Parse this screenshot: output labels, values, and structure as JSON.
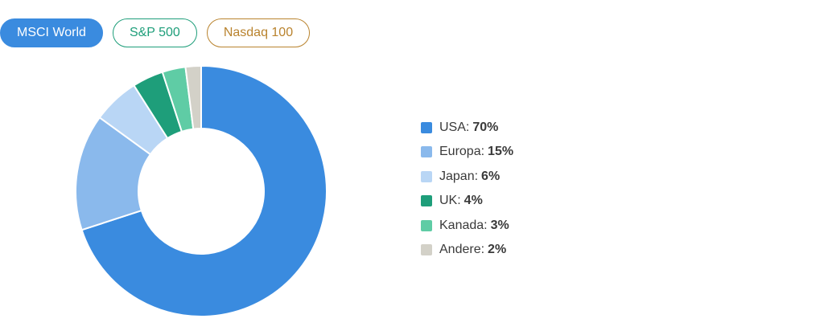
{
  "tabs": [
    {
      "label": "MSCI World",
      "active": true,
      "color": "#3a8bdf"
    },
    {
      "label": "S&P 500",
      "active": false,
      "color": "#1e9e7a"
    },
    {
      "label": "Nasdaq 100",
      "active": false,
      "color": "#b9832e"
    }
  ],
  "chart_data": {
    "type": "pie",
    "title": "",
    "donut": true,
    "legend_position": "right",
    "categories": [
      "USA",
      "Europa",
      "Japan",
      "UK",
      "Kanada",
      "Andere"
    ],
    "values": [
      70,
      15,
      6,
      4,
      3,
      2
    ],
    "value_suffix": "%",
    "colors": [
      "#3a8bdf",
      "#8ab9ec",
      "#b9d6f5",
      "#1e9e7a",
      "#5fcca5",
      "#d3d1c8"
    ],
    "legend": [
      {
        "label": "USA:",
        "value": "70%"
      },
      {
        "label": "Europa:",
        "value": "15%"
      },
      {
        "label": "Japan:",
        "value": "6%"
      },
      {
        "label": "UK:",
        "value": "4%"
      },
      {
        "label": "Kanada:",
        "value": "3%"
      },
      {
        "label": "Andere:",
        "value": "2%"
      }
    ]
  }
}
